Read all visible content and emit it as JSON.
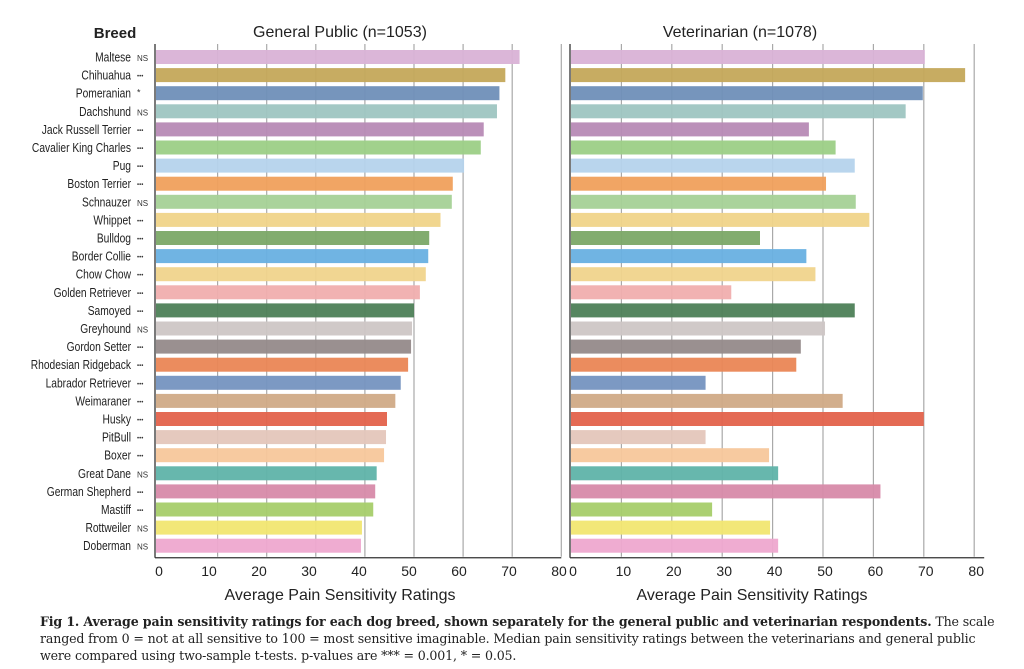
{
  "chart_data": [
    {
      "type": "bar",
      "orientation": "horizontal",
      "title": "General Public (n=1053)",
      "xlabel": "Average Pain Sensitivity Ratings",
      "ylabel": "Breed",
      "xlim": [
        0,
        80
      ],
      "xticks": [
        0,
        10,
        20,
        30,
        40,
        50,
        60,
        70,
        80
      ],
      "grid": true,
      "categories": [
        "Maltese",
        "Chihuahua",
        "Pomeranian",
        "Dachshund",
        "Jack Russell Terrier",
        "Cavalier King Charles",
        "Pug",
        "Boston Terrier",
        "Schnauzer",
        "Whippet",
        "Bulldog",
        "Border Collie",
        "Chow Chow",
        "Golden Retriever",
        "Samoyed",
        "Greyhound",
        "Gordon Setter",
        "Rhodesian Ridgeback",
        "Labrador Retriever",
        "Weimaraner",
        "Husky",
        "PitBull",
        "Boxer",
        "Great Dane",
        "German Shepherd",
        "Mastiff",
        "Rottweiler",
        "Doberman"
      ],
      "values": [
        71.5,
        68.6,
        67.4,
        66.9,
        64.2,
        63.6,
        60.2,
        57.9,
        57.7,
        55.4,
        53.1,
        52.9,
        52.4,
        51.2,
        50.0,
        49.6,
        49.4,
        48.8,
        47.3,
        46.2,
        44.5,
        44.3,
        43.9,
        42.4,
        42.1,
        41.7,
        39.4,
        39.2
      ]
    },
    {
      "type": "bar",
      "orientation": "horizontal",
      "title": "Veterinarian (n=1078)",
      "xlabel": "Average Pain Sensitivity Ratings",
      "xlim": [
        0,
        80
      ],
      "xticks": [
        0,
        10,
        20,
        30,
        40,
        50,
        60,
        70,
        80
      ],
      "grid": true,
      "categories": [
        "Maltese",
        "Chihuahua",
        "Pomeranian",
        "Dachshund",
        "Jack Russell Terrier",
        "Cavalier King Charles",
        "Pug",
        "Boston Terrier",
        "Schnauzer",
        "Whippet",
        "Bulldog",
        "Border Collie",
        "Chow Chow",
        "Golden Retriever",
        "Samoyed",
        "Greyhound",
        "Gordon Setter",
        "Rhodesian Ridgeback",
        "Labrador Retriever",
        "Weimaraner",
        "Husky",
        "PitBull",
        "Boxer",
        "Great Dane",
        "German Shepherd",
        "Mastiff",
        "Rottweiler",
        "Doberman"
      ],
      "values": [
        70.2,
        78.2,
        69.8,
        66.4,
        47.2,
        52.5,
        56.3,
        50.6,
        56.5,
        59.2,
        37.5,
        46.7,
        48.5,
        31.8,
        56.3,
        50.4,
        45.6,
        44.7,
        26.7,
        53.9,
        70.0,
        26.7,
        39.3,
        41.1,
        61.4,
        28.0,
        39.5,
        41.1
      ]
    }
  ],
  "significance": [
    "NS",
    "***",
    "*",
    "NS",
    "***",
    "***",
    "***",
    "***",
    "NS",
    "***",
    "***",
    "***",
    "***",
    "***",
    "***",
    "NS",
    "***",
    "***",
    "***",
    "***",
    "***",
    "***",
    "***",
    "NS",
    "***",
    "***",
    "NS",
    "NS"
  ],
  "colors": [
    "#d9b2d6",
    "#c4a85a",
    "#6f8fb8",
    "#9ec5c1",
    "#b78ab5",
    "#9ccf86",
    "#b5d3ec",
    "#f0a05c",
    "#a5d196",
    "#f0d489",
    "#7ba867",
    "#68b0e2",
    "#f0d48c",
    "#f0aeae",
    "#4d7f57",
    "#cdc6c5",
    "#958a8a",
    "#ea8655",
    "#7593c0",
    "#d0aa86",
    "#e3624b",
    "#e4c6ba",
    "#f7c79b",
    "#5fb3a9",
    "#d78aa9",
    "#a6cd6a",
    "#f1e671",
    "#eea8cf"
  ],
  "breed_header": "Breed",
  "caption": {
    "bold": "Fig 1.  Average pain sensitivity ratings for each dog breed, shown separately for the general public and veterinarian respondents.",
    "rest": " The scale ranged from 0 = not at all sensitive to 100 = most sensitive imaginable. Median pain sensitivity ratings between the veterinarians and general public were compared using two-sample t-tests. p-values are *** = 0.001, * = 0.05."
  }
}
